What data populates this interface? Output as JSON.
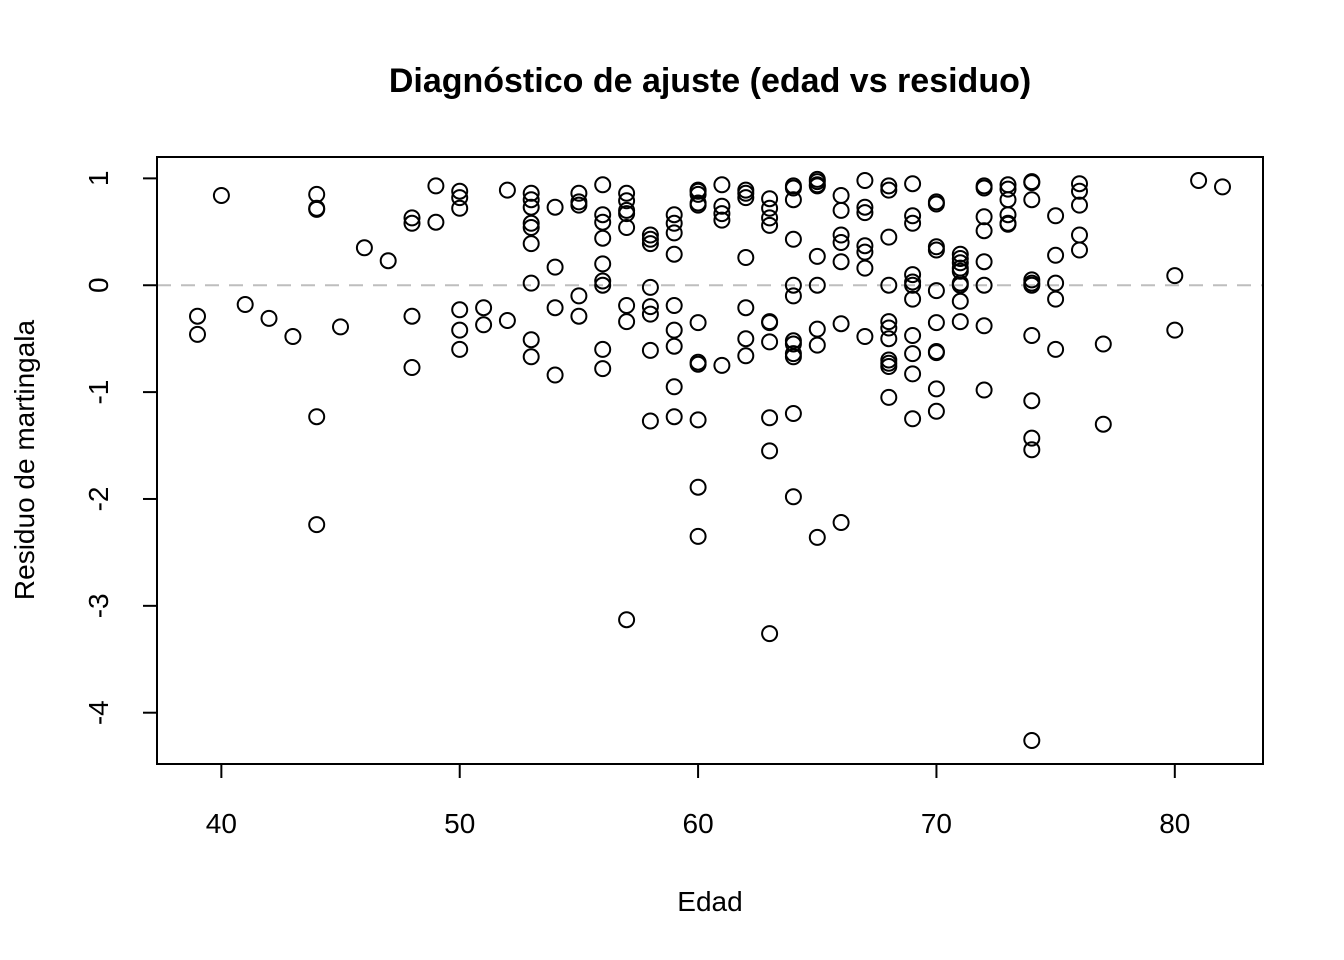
{
  "chart_data": {
    "type": "scatter",
    "title": "Diagnóstico de ajuste (edad vs residuo)",
    "xlabel": "Edad",
    "ylabel": "Residuo de martingala",
    "xlim": [
      37.3,
      83.7
    ],
    "ylim": [
      -4.48,
      1.2
    ],
    "xticks": [
      40,
      50,
      60,
      70,
      80
    ],
    "xtick_labels": [
      "40",
      "50",
      "60",
      "70",
      "80"
    ],
    "yticks": [
      1,
      0,
      -1,
      -2,
      -3,
      -4
    ],
    "ytick_labels": [
      "1",
      "0",
      "-1",
      "-2",
      "-3",
      "-4"
    ],
    "reference_line": {
      "y": 0,
      "style": "dashed",
      "color": "#bebebe"
    },
    "grid": false,
    "legend": "none",
    "marker": "open-circle",
    "series": [
      {
        "x": [
          39,
          39,
          40,
          41,
          42,
          43,
          44,
          44,
          44,
          44,
          44,
          45,
          46,
          47,
          48,
          48,
          48,
          48,
          49,
          49,
          50,
          50,
          50,
          50,
          50,
          50,
          51,
          51,
          52,
          52,
          53,
          53,
          53,
          53,
          53,
          53,
          53,
          53,
          53,
          54,
          54,
          54,
          54,
          55,
          55,
          55,
          55,
          55,
          56,
          56,
          56,
          56,
          56,
          56,
          56,
          56,
          56,
          57,
          57,
          57,
          57,
          57,
          57,
          57,
          57,
          58,
          58,
          58,
          58,
          58,
          58,
          58,
          58,
          59,
          59,
          59,
          59,
          59,
          59,
          59,
          59,
          59,
          60,
          60,
          60,
          60,
          60,
          60,
          60,
          60,
          60,
          60,
          60,
          61,
          61,
          61,
          61,
          61,
          62,
          62,
          62,
          62,
          62,
          62,
          62,
          63,
          63,
          63,
          63,
          63,
          63,
          63,
          63,
          63,
          63,
          64,
          64,
          64,
          64,
          64,
          64,
          64,
          64,
          64,
          64,
          64,
          64,
          65,
          65,
          65,
          65,
          65,
          65,
          65,
          65,
          65,
          66,
          66,
          66,
          66,
          66,
          66,
          66,
          67,
          67,
          67,
          67,
          67,
          67,
          67,
          68,
          68,
          68,
          68,
          68,
          68,
          68,
          68,
          68,
          68,
          68,
          69,
          69,
          69,
          69,
          69,
          69,
          69,
          69,
          69,
          69,
          69,
          70,
          70,
          70,
          70,
          70,
          70,
          70,
          70,
          70,
          70,
          71,
          71,
          71,
          71,
          71,
          71,
          71,
          71,
          71,
          72,
          72,
          72,
          72,
          72,
          72,
          72,
          72,
          73,
          73,
          73,
          73,
          73,
          73,
          74,
          74,
          74,
          74,
          74,
          74,
          74,
          74,
          74,
          74,
          74,
          75,
          75,
          75,
          75,
          75,
          76,
          76,
          76,
          76,
          76,
          77,
          77,
          80,
          80,
          81,
          82
        ],
        "y": [
          -0.29,
          -0.46,
          0.84,
          -0.18,
          -0.31,
          -0.48,
          0.85,
          0.72,
          0.71,
          -1.23,
          -2.24,
          -0.39,
          0.35,
          0.23,
          0.63,
          0.58,
          -0.29,
          -0.77,
          0.93,
          0.59,
          0.88,
          0.82,
          0.72,
          -0.23,
          -0.42,
          -0.6,
          -0.21,
          -0.37,
          0.89,
          -0.33,
          0.86,
          0.8,
          0.73,
          0.58,
          0.54,
          0.39,
          0.02,
          -0.51,
          -0.67,
          0.73,
          0.17,
          -0.21,
          -0.84,
          0.86,
          0.78,
          0.75,
          -0.1,
          -0.29,
          -0.78,
          0.94,
          0.66,
          0.59,
          0.44,
          0.2,
          0.04,
          0.0,
          -0.6,
          -3.13,
          0.86,
          0.79,
          0.7,
          0.67,
          0.54,
          -0.19,
          -0.34,
          -0.61,
          -1.27,
          0.47,
          0.43,
          0.39,
          -0.02,
          -0.2,
          -0.27,
          -0.57,
          -0.95,
          0.66,
          0.58,
          0.49,
          0.29,
          -0.19,
          -0.42,
          -1.23,
          -1.89,
          0.89,
          0.88,
          0.85,
          0.77,
          0.75,
          -0.35,
          -0.72,
          -0.74,
          -1.26,
          -2.35,
          0.94,
          0.74,
          0.67,
          0.61,
          -0.75,
          0.89,
          0.86,
          0.82,
          0.26,
          -0.21,
          -0.5,
          -0.66,
          0.81,
          0.72,
          0.63,
          0.56,
          -0.34,
          -0.35,
          -0.53,
          -1.24,
          -1.55,
          -3.26,
          0.93,
          0.91,
          0.8,
          0.43,
          -0.1,
          -0.52,
          -0.55,
          -0.64,
          -0.67,
          -1.2,
          -1.98,
          0.0,
          0.99,
          0.97,
          0.94,
          0.93,
          0.27,
          -0.41,
          -0.56,
          -2.36,
          0.0,
          0.84,
          0.7,
          0.47,
          0.4,
          0.22,
          -0.36,
          -2.22,
          0.98,
          0.73,
          0.68,
          0.37,
          0.31,
          0.16,
          -0.48,
          0.93,
          0.89,
          0.45,
          -0.34,
          -0.4,
          -0.5,
          -0.7,
          -0.73,
          -0.76,
          -1.05,
          0.0,
          0.95,
          0.65,
          0.58,
          0.1,
          0.03,
          -0.13,
          -0.47,
          -0.64,
          -0.83,
          -1.25,
          0.0,
          0.78,
          0.76,
          0.36,
          0.33,
          -0.05,
          -0.35,
          -0.62,
          -0.63,
          -0.97,
          -1.18,
          0.29,
          0.25,
          0.21,
          0.16,
          0.13,
          0.02,
          -0.15,
          -0.34,
          0.0,
          0.93,
          0.91,
          0.64,
          0.51,
          0.22,
          -0.38,
          -0.98,
          0.0,
          0.94,
          0.9,
          0.8,
          0.66,
          0.58,
          0.57,
          0.97,
          0.96,
          0.8,
          0.05,
          0.02,
          -0.47,
          -1.08,
          -1.43,
          -1.54,
          -4.26,
          0.0,
          0.65,
          0.28,
          0.02,
          -0.13,
          -0.6,
          0.95,
          0.88,
          0.75,
          0.47,
          0.33,
          -0.55,
          -1.3,
          0.09,
          -0.42,
          0.98,
          0.92
        ]
      }
    ]
  }
}
